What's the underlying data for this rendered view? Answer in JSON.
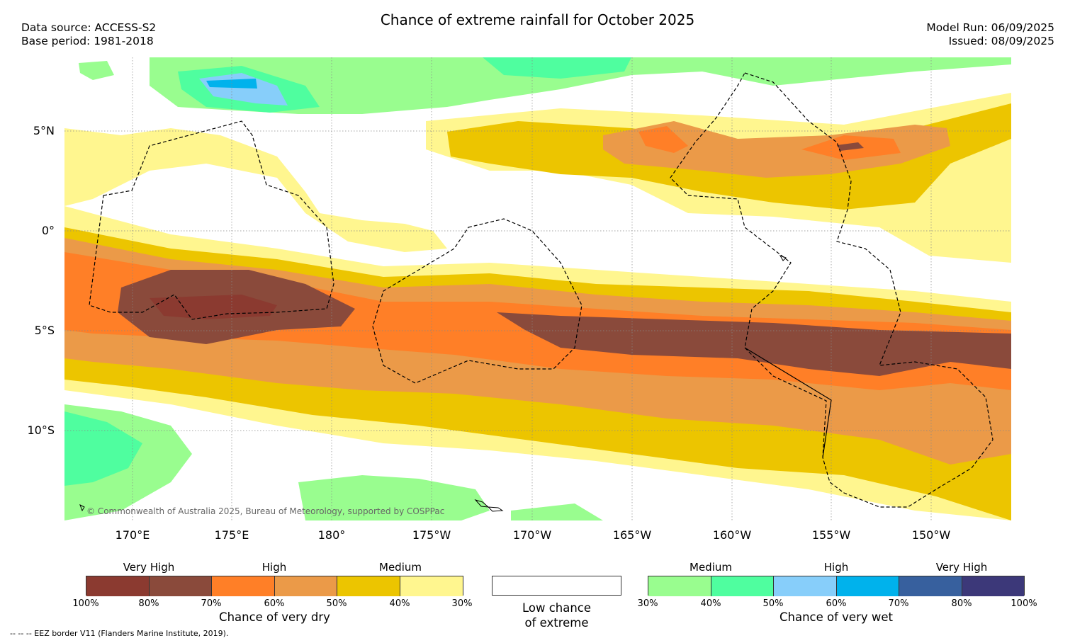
{
  "title": "Chance of extreme rainfall for October 2025",
  "meta_left": {
    "data_source": "Data source: ACCESS-S2",
    "base_period": "Base period: 1981-2018"
  },
  "meta_right": {
    "model_run": "Model Run: 06/09/2025",
    "issued": "Issued: 08/09/2025"
  },
  "latitude_labels": [
    "5°N",
    "0°",
    "5°S",
    "10°S"
  ],
  "longitude_labels": [
    "170°E",
    "175°E",
    "180°",
    "175°W",
    "170°W",
    "165°W",
    "160°W",
    "155°W",
    "150°W"
  ],
  "copyright": "© Commonwealth of Australia 2025, Bureau of Meteorology, supported by COSPPac",
  "legend_dry": {
    "headers": [
      "Very High",
      "High",
      "Medium"
    ],
    "ticks": [
      "100%",
      "80%",
      "70%",
      "60%",
      "50%",
      "40%",
      "30%"
    ],
    "colors": [
      "#8b3a30",
      "#8a4a3b",
      "#ff7f27",
      "#eb9a48",
      "#ecc500",
      "#fff68f"
    ],
    "caption": "Chance of very dry"
  },
  "legend_low": {
    "line1": "Low chance",
    "line2": "of extreme",
    "color": "#ffffff"
  },
  "legend_wet": {
    "headers": [
      "Medium",
      "High",
      "Very High"
    ],
    "ticks": [
      "30%",
      "40%",
      "50%",
      "60%",
      "70%",
      "80%",
      "100%"
    ],
    "colors": [
      "#99fd8f",
      "#4ffe9f",
      "#87cefa",
      "#00b2ec",
      "#37609e",
      "#3c3879"
    ],
    "caption": "Chance of very wet"
  },
  "footnote": "-- -- -- EEZ border V11 (Flanders Marine Institute, 2019)."
}
